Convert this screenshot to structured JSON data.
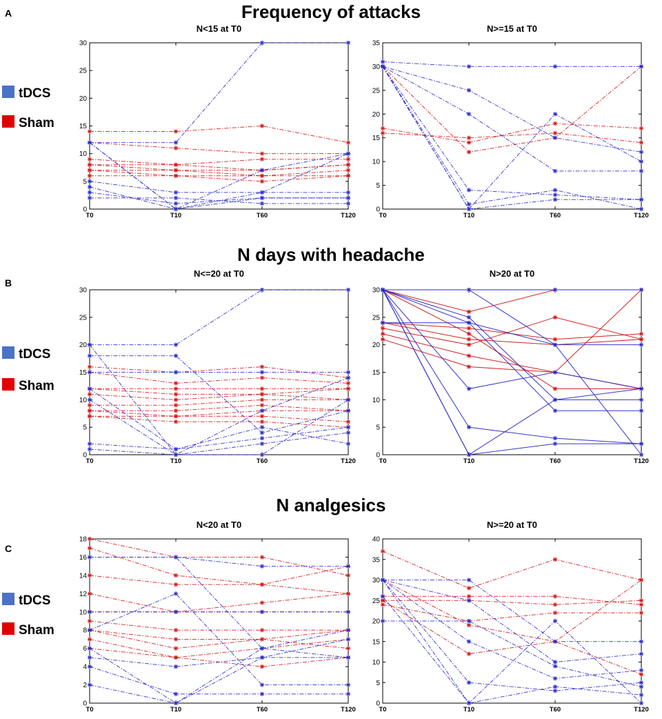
{
  "colors": {
    "tdcs": "#2828c8",
    "sham": "#d01414",
    "axis": "#000000"
  },
  "xcategories": [
    "T0",
    "T10",
    "T60",
    "T120"
  ],
  "panels": [
    {
      "letter": "A",
      "title": "Frequency of attacks",
      "legend": [
        {
          "label": "tDCS",
          "color": "#4a72c8"
        },
        {
          "label": "Sham",
          "color": "#e00000"
        }
      ],
      "plots": [
        {
          "subtitle": "N<15 at T0",
          "ylim": [
            0,
            30
          ],
          "yticks": [
            0,
            5,
            10,
            15,
            20,
            25,
            30
          ],
          "line_style": "dashdot",
          "tdcs": [
            [
              12,
              12,
              30,
              30
            ],
            [
              12,
              0,
              7,
              10
            ],
            [
              12,
              0,
              3,
              10
            ],
            [
              5,
              3,
              3,
              3
            ],
            [
              4,
              0,
              2,
              2
            ],
            [
              3,
              1,
              2,
              2
            ],
            [
              2,
              2,
              1,
              1
            ]
          ],
          "sham": [
            [
              14,
              14,
              15,
              12
            ],
            [
              12,
              11,
              10,
              10
            ],
            [
              9,
              8,
              9,
              9
            ],
            [
              8,
              8,
              7,
              8
            ],
            [
              8,
              7,
              7,
              8
            ],
            [
              7,
              7,
              6,
              7
            ],
            [
              7,
              6,
              6,
              6
            ],
            [
              6,
              6,
              5,
              6
            ]
          ]
        },
        {
          "subtitle": "N>=15 at T0",
          "ylim": [
            0,
            35
          ],
          "yticks": [
            0,
            5,
            10,
            15,
            20,
            25,
            30,
            35
          ],
          "line_style": "dashdot",
          "tdcs": [
            [
              31,
              30,
              30,
              30
            ],
            [
              30,
              25,
              15,
              12
            ],
            [
              30,
              20,
              8,
              8
            ],
            [
              30,
              4,
              3,
              2
            ],
            [
              30,
              1,
              4,
              0
            ],
            [
              30,
              0,
              20,
              10
            ],
            [
              30,
              0,
              2,
              2
            ]
          ],
          "sham": [
            [
              30,
              12,
              15,
              30
            ],
            [
              17,
              14,
              18,
              17
            ],
            [
              16,
              15,
              16,
              14
            ]
          ]
        }
      ]
    },
    {
      "letter": "B",
      "title": "N days with headache",
      "legend": [
        {
          "label": "tDCS",
          "color": "#4a72c8"
        },
        {
          "label": "Sham",
          "color": "#e00000"
        }
      ],
      "plots": [
        {
          "subtitle": "N<=20 at T0",
          "ylim": [
            0,
            30
          ],
          "yticks": [
            0,
            5,
            10,
            15,
            20,
            25,
            30
          ],
          "line_style": "dashdot",
          "tdcs": [
            [
              20,
              20,
              30,
              30
            ],
            [
              18,
              18,
              4,
              8
            ],
            [
              20,
              0,
              8,
              14
            ],
            [
              15,
              15,
              15,
              15
            ],
            [
              12,
              1,
              3,
              5
            ],
            [
              10,
              0,
              0,
              10
            ],
            [
              2,
              1,
              5,
              2
            ],
            [
              1,
              0,
              2,
              4
            ]
          ],
          "sham": [
            [
              16,
              15,
              16,
              14
            ],
            [
              15,
              13,
              14,
              13
            ],
            [
              12,
              12,
              12,
              12
            ],
            [
              12,
              11,
              11,
              12
            ],
            [
              11,
              10,
              11,
              10
            ],
            [
              9,
              9,
              10,
              10
            ],
            [
              8,
              8,
              9,
              8
            ],
            [
              8,
              7,
              8,
              8
            ],
            [
              7,
              7,
              7,
              6
            ],
            [
              7,
              6,
              6,
              5
            ]
          ]
        },
        {
          "subtitle": "N>20 at T0",
          "ylim": [
            0,
            30
          ],
          "yticks": [
            0,
            5,
            10,
            15,
            20,
            25,
            30
          ],
          "line_style": "solid",
          "tdcs": [
            [
              30,
              30,
              30,
              30
            ],
            [
              30,
              30,
              20,
              20
            ],
            [
              30,
              25,
              10,
              12
            ],
            [
              30,
              24,
              8,
              8
            ],
            [
              30,
              12,
              15,
              12
            ],
            [
              30,
              5,
              3,
              2
            ],
            [
              30,
              0,
              10,
              10
            ],
            [
              30,
              0,
              2,
              2
            ],
            [
              24,
              24,
              20,
              0
            ]
          ],
          "sham": [
            [
              30,
              26,
              30,
              30
            ],
            [
              24,
              23,
              21,
              22
            ],
            [
              24,
              21,
              20,
              21
            ],
            [
              23,
              20,
              25,
              21
            ],
            [
              22,
              18,
              15,
              30
            ],
            [
              21,
              16,
              15,
              12
            ],
            [
              30,
              22,
              12,
              12
            ]
          ]
        }
      ]
    },
    {
      "letter": "C",
      "title": "N analgesics",
      "legend": [
        {
          "label": "tDCS",
          "color": "#4a72c8"
        },
        {
          "label": "Sham",
          "color": "#e00000"
        }
      ],
      "plots": [
        {
          "subtitle": "N<20 at T0",
          "ylim": [
            0,
            18
          ],
          "yticks": [
            0,
            2,
            4,
            6,
            8,
            10,
            12,
            14,
            16,
            18
          ],
          "line_style": "dashdot",
          "tdcs": [
            [
              16,
              16,
              15,
              15
            ],
            [
              10,
              10,
              10,
              10
            ],
            [
              8,
              12,
              2,
              2
            ],
            [
              6,
              0,
              5,
              7
            ],
            [
              5,
              4,
              5,
              5
            ],
            [
              4,
              1,
              1,
              1
            ],
            [
              2,
              0,
              6,
              8
            ],
            [
              16,
              16,
              6,
              5
            ]
          ],
          "sham": [
            [
              18,
              16,
              16,
              14
            ],
            [
              17,
              14,
              13,
              15
            ],
            [
              14,
              13,
              13,
              12
            ],
            [
              12,
              10,
              11,
              12
            ],
            [
              10,
              10,
              10,
              10
            ],
            [
              9,
              8,
              8,
              8
            ],
            [
              8,
              7,
              7,
              8
            ],
            [
              8,
              6,
              7,
              6
            ],
            [
              7,
              5,
              6,
              7
            ],
            [
              6,
              5,
              4,
              5
            ]
          ]
        },
        {
          "subtitle": "N>=20 at T0",
          "ylim": [
            0,
            40
          ],
          "yticks": [
            0,
            5,
            10,
            15,
            20,
            25,
            30,
            35,
            40
          ],
          "line_style": "dashdot",
          "tdcs": [
            [
              30,
              30,
              15,
              15
            ],
            [
              30,
              25,
              10,
              12
            ],
            [
              30,
              15,
              6,
              8
            ],
            [
              30,
              5,
              3,
              5
            ],
            [
              26,
              0,
              20,
              0
            ],
            [
              20,
              20,
              9,
              4
            ],
            [
              30,
              0,
              4,
              2
            ]
          ],
          "sham": [
            [
              37,
              28,
              35,
              30
            ],
            [
              26,
              26,
              26,
              24
            ],
            [
              25,
              25,
              24,
              25
            ],
            [
              24,
              20,
              22,
              22
            ],
            [
              30,
              19,
              15,
              30
            ],
            [
              25,
              12,
              15,
              7
            ]
          ]
        }
      ]
    }
  ]
}
